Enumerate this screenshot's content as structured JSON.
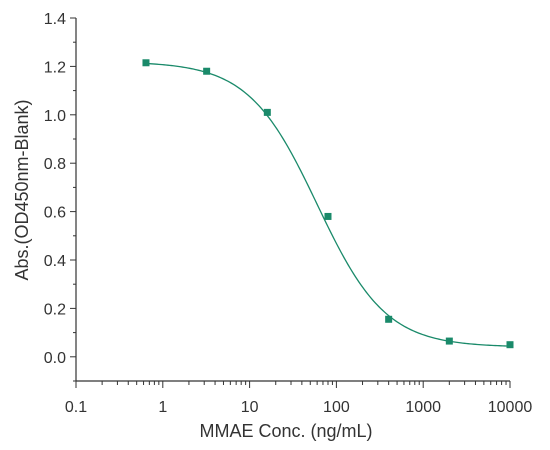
{
  "chart_data": {
    "type": "scatter",
    "title": "",
    "xlabel": "MMAE Conc. (ng/mL)",
    "ylabel": "Abs.(OD450nm-Blank)",
    "x_scale": "log",
    "xlim": [
      0.1,
      10000
    ],
    "ylim": [
      -0.1,
      1.4
    ],
    "x_ticks": [
      0.1,
      1,
      10,
      100,
      1000,
      10000
    ],
    "x_tick_labels": [
      "0.1",
      "1",
      "10",
      "100",
      "1000",
      "10000"
    ],
    "y_ticks": [
      0.0,
      0.2,
      0.4,
      0.6,
      0.8,
      1.0,
      1.2,
      1.4
    ],
    "y_tick_labels": [
      "0.0",
      "0.2",
      "0.4",
      "0.6",
      "0.8",
      "1.0",
      "1.2",
      "1.4"
    ],
    "grid": false,
    "color": "#1a8a6a",
    "series": [
      {
        "x": [
          0.64,
          3.2,
          16,
          80,
          400,
          2000,
          10000
        ],
        "y": [
          1.215,
          1.18,
          1.01,
          0.58,
          0.155,
          0.065,
          0.05
        ],
        "marker": "square",
        "fit_line": "sigmoidal"
      }
    ],
    "fit": {
      "bottom": 0.04,
      "top": 1.22,
      "ec50": 60,
      "hill": 1.1
    }
  }
}
